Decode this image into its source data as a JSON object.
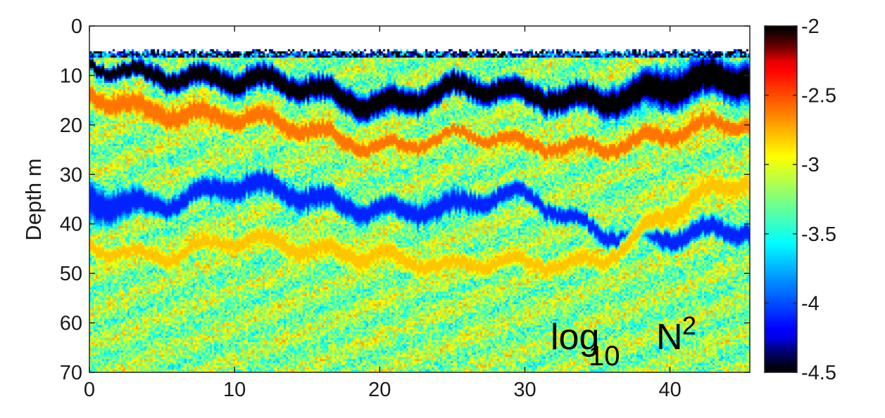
{
  "chart_data": {
    "type": "heatmap",
    "title": "",
    "xlabel": "",
    "ylabel": "Depth m",
    "xlim": [
      0,
      45.5
    ],
    "ylim": [
      70,
      0
    ],
    "x_ticks": [
      "0",
      "10",
      "20",
      "30",
      "40"
    ],
    "x_tick_values": [
      0,
      10,
      20,
      30,
      40
    ],
    "y_ticks": [
      "0",
      "10",
      "20",
      "30",
      "40",
      "50",
      "60",
      "70"
    ],
    "y_tick_values": [
      0,
      10,
      20,
      30,
      40,
      50,
      60,
      70
    ],
    "colormap": "jet-reversed",
    "colorbar": {
      "range": [
        -4.5,
        -2
      ],
      "ticks": [
        "-2",
        "-2.5",
        "-3",
        "-3.5",
        "-4",
        "-4.5"
      ],
      "tick_values": [
        -2,
        -2.5,
        -3,
        -3.5,
        -4,
        -4.5
      ],
      "orientation": "vertical",
      "placement": "right"
    },
    "annotation": {
      "base": "log",
      "subscript": "10",
      "main": "N",
      "superscript": "2"
    },
    "grid": false,
    "depth_profile": {
      "x": [
        0,
        5,
        10,
        15,
        20,
        25,
        30,
        35,
        40,
        45
      ],
      "surface_depth": [
        5,
        5,
        5,
        5,
        5,
        5,
        5,
        5,
        5,
        5
      ],
      "bands": [
        {
          "name": "",
          "depth_top": [
            6,
            6,
            9,
            10,
            11,
            10,
            12,
            10,
            7,
            7
          ],
          "depth_bottom": [
            9,
            11,
            15,
            16,
            18,
            16,
            18,
            17,
            17,
            17
          ],
          "value": -4.5
        },
        {
          "name": "",
          "depth_top": [
            11,
            13,
            17,
            19,
            21,
            21,
            23,
            21,
            19,
            19
          ],
          "depth_bottom": [
            16,
            19,
            22,
            24,
            25,
            24,
            27,
            25,
            24,
            23
          ],
          "value": -2.6
        },
        {
          "name": "",
          "depth_top": [
            30,
            32,
            30,
            32,
            33,
            34,
            33,
            38,
            40,
            40
          ],
          "depth_bottom": [
            40,
            37,
            36,
            38,
            38,
            40,
            37,
            42,
            45,
            45
          ],
          "value": -4.1
        },
        {
          "name": "",
          "depth_top": [
            42,
            43,
            42,
            43,
            42,
            47,
            47,
            44,
            34,
            30
          ],
          "depth_bottom": [
            46,
            47,
            46,
            48,
            47,
            51,
            51,
            48,
            40,
            35
          ],
          "value": -2.8
        }
      ],
      "background_value": -3.2
    }
  }
}
